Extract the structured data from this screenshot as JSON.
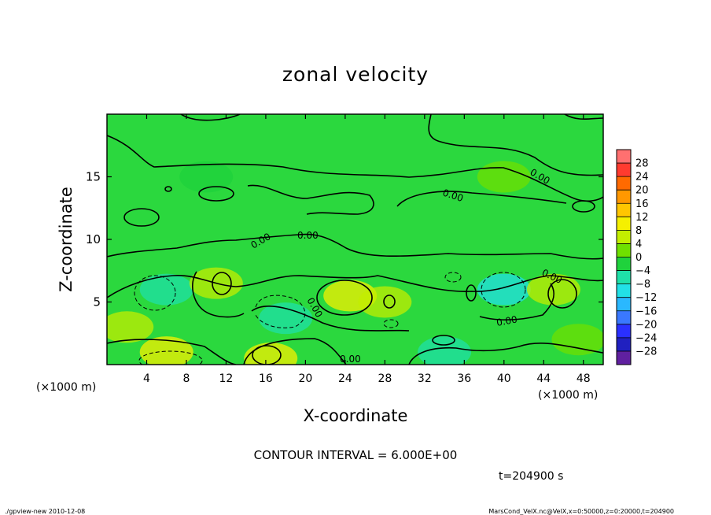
{
  "chart_data": {
    "type": "heatmap",
    "title": "zonal velocity",
    "xlabel": "X-coordinate",
    "ylabel": "Z-coordinate",
    "x_unit": "(×1000 m)",
    "xlim": [
      0,
      50
    ],
    "ylim": [
      0,
      20
    ],
    "x_ticks": [
      4,
      8,
      12,
      16,
      20,
      24,
      28,
      32,
      36,
      40,
      44,
      48
    ],
    "y_ticks": [
      5,
      10,
      15
    ],
    "colorbar": {
      "labels": [
        "28",
        "24",
        "20",
        "16",
        "12",
        "8",
        "4",
        "0",
        "−4",
        "−8",
        "−12",
        "−16",
        "−20",
        "−24",
        "−28"
      ],
      "boundaries": [
        30,
        28,
        24,
        20,
        16,
        12,
        8,
        4,
        0,
        -4,
        -8,
        -12,
        -16,
        -20,
        -24,
        -28,
        -30
      ],
      "colors": [
        "#ff7070",
        "#ff3b2f",
        "#ff6a00",
        "#ff9800",
        "#ffc600",
        "#f5f000",
        "#c3ee00",
        "#6fe000",
        "#1fd23c",
        "#1fe0a8",
        "#22e0e6",
        "#2ab8ff",
        "#3a78ff",
        "#2a30ff",
        "#2020c0",
        "#6020a0"
      ]
    },
    "contour_labels": [
      "0.00",
      "0.00",
      "0.00",
      "0.00",
      "0.00",
      "0.00",
      "0.00",
      "0.00"
    ],
    "contour_interval": "CONTOUR INTERVAL = 6.000E+00",
    "time": "t=204900 s",
    "approx_field": {
      "description_free_background": "near zero above z=10, alternating positive/negative cells below",
      "features": [
        {
          "x": 6,
          "z": 1.0,
          "value": 9
        },
        {
          "x": 16.5,
          "z": 0.5,
          "value": 10
        },
        {
          "x": 6,
          "z": 6.0,
          "value": -7
        },
        {
          "x": 18,
          "z": 3.7,
          "value": -7
        },
        {
          "x": 24.5,
          "z": 5.5,
          "value": 9
        },
        {
          "x": 11,
          "z": 6.5,
          "value": 6
        },
        {
          "x": 40,
          "z": 6.0,
          "value": -8
        },
        {
          "x": 45,
          "z": 6.0,
          "value": 6
        },
        {
          "x": 34,
          "z": 1.0,
          "value": -6
        },
        {
          "x": 28,
          "z": 5.0,
          "value": 5
        },
        {
          "x": 2,
          "z": 3.0,
          "value": 5
        },
        {
          "x": 47.5,
          "z": 2.0,
          "value": 4
        },
        {
          "x": 10,
          "z": 15,
          "value": -2
        },
        {
          "x": 40,
          "z": 15,
          "value": 2
        }
      ]
    }
  },
  "footer": {
    "left": "./gpview-new   2010-12-08",
    "right": "MarsCond_VelX.nc@VelX,x=0:50000,z=0:20000,t=204900"
  }
}
